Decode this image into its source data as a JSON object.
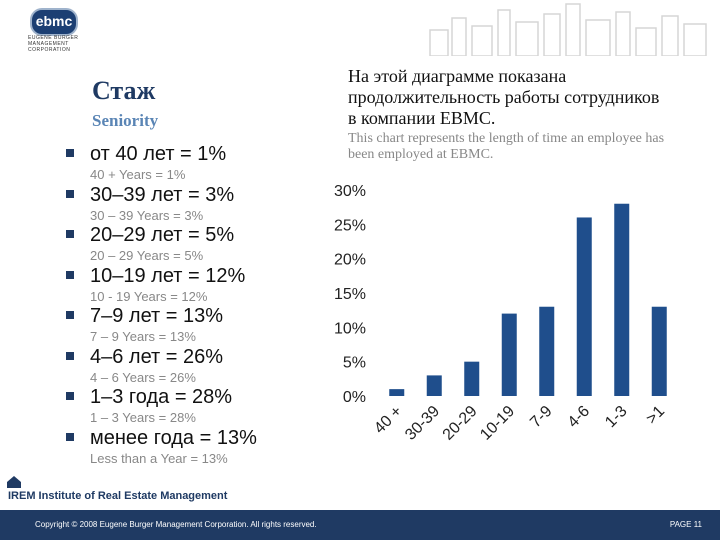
{
  "logo": {
    "name": "ebmc",
    "subtitle": [
      "EUGENE BURGER",
      "MANAGEMENT",
      "CORPORATION"
    ]
  },
  "title": {
    "ru": "Стаж",
    "en": "Seniority"
  },
  "description": {
    "ru": "На этой диаграмме показана продолжительность работы сотрудников в компании EBMC.",
    "en": "This chart represents the length of time an employee has been employed at EBMC."
  },
  "bullets": [
    {
      "main": "от 40 лет = 1%",
      "sub": "40 + Years = 1%"
    },
    {
      "main": "30–39 лет = 3%",
      "sub": "30 – 39 Years = 3%"
    },
    {
      "main": "20–29 лет = 5%",
      "sub": "20 – 29 Years = 5%"
    },
    {
      "main": "10–19 лет = 12%",
      "sub": "10 - 19 Years = 12%"
    },
    {
      "main": "7–9 лет = 13%",
      "sub": "7 – 9 Years = 13%"
    },
    {
      "main": "4–6 лет = 26%",
      "sub": "4 – 6 Years = 26%"
    },
    {
      "main": "1–3 года = 28%",
      "sub": "1 – 3 Years = 28%"
    },
    {
      "main": "менее года = 13%",
      "sub": "Less than a Year = 13%"
    }
  ],
  "chart_data": {
    "type": "bar",
    "categories": [
      "40 +",
      "30-39",
      "20-29",
      "10-19",
      "7-9",
      "4-6",
      "1-3",
      ">1"
    ],
    "values": [
      1,
      3,
      5,
      12,
      13,
      26,
      28,
      13
    ],
    "title": "",
    "xlabel": "",
    "ylabel": "",
    "ylim": [
      0,
      30
    ],
    "yticks": [
      "0%",
      "5%",
      "10%",
      "15%",
      "20%",
      "25%",
      "30%"
    ],
    "grid": false,
    "legend": "none",
    "bar_color": "#1f4e8c"
  },
  "irem": {
    "label": "IREM Institute of Real Estate Management"
  },
  "footer": {
    "copyright": "Copyright © 2008 Eugene Burger Management Corporation. All rights reserved.",
    "page": "PAGE 11"
  }
}
